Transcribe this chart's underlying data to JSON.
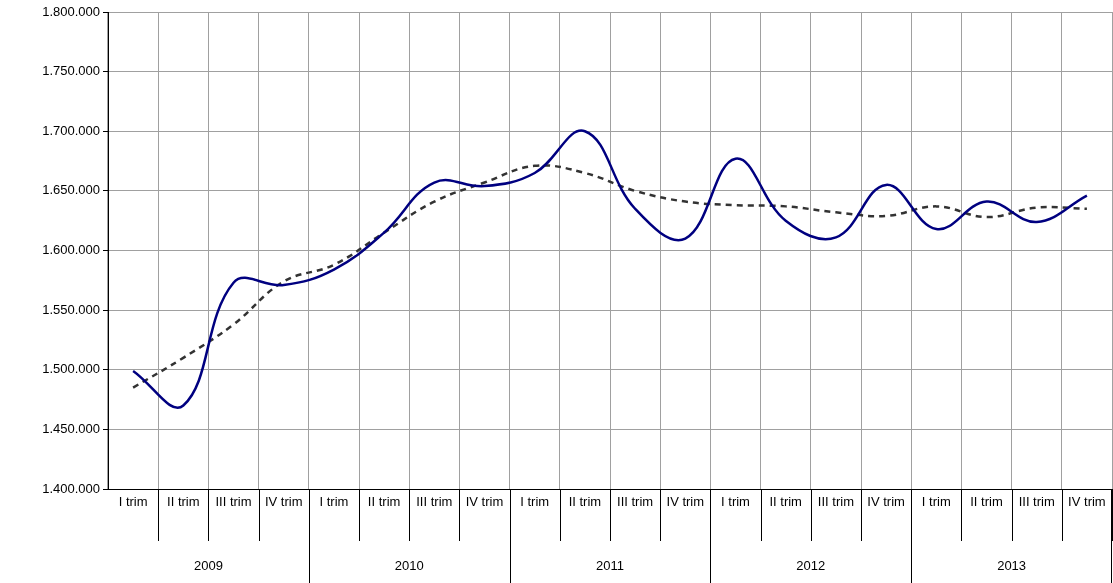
{
  "chart_data": {
    "type": "line",
    "categories": [
      "I trim",
      "II trim",
      "III trim",
      "IV trim",
      "I trim",
      "II trim",
      "III trim",
      "IV trim",
      "I trim",
      "II trim",
      "III trim",
      "IV trim",
      "I trim",
      "II trim",
      "III trim",
      "IV trim",
      "I trim",
      "II trim",
      "III trim",
      "IV trim"
    ],
    "series": [
      {
        "color": "#000080",
        "line_style": "solid",
        "values": [
          1499000,
          1470000,
          1573000,
          1571000,
          1584000,
          1615000,
          1657000,
          1654000,
          1665000,
          1700000,
          1635000,
          1610000,
          1677000,
          1625000,
          1611000,
          1655000,
          1618000,
          1641000,
          1624000,
          1646000
        ]
      },
      {
        "color": "#333333",
        "line_style": "dashed",
        "values": [
          1485000,
          1510000,
          1538000,
          1574000,
          1588000,
          1615000,
          1641000,
          1657000,
          1671000,
          1665000,
          1650000,
          1641000,
          1638000,
          1637000,
          1632000,
          1629000,
          1637000,
          1628000,
          1636000,
          1635000
        ]
      }
    ],
    "ylim": [
      1400000,
      1800000
    ],
    "yticks": [
      {
        "value": 1400000,
        "label": "1.400.000"
      },
      {
        "value": 1450000,
        "label": "1.450.000"
      },
      {
        "value": 1500000,
        "label": "1.500.000"
      },
      {
        "value": 1550000,
        "label": "1.550.000"
      },
      {
        "value": 1600000,
        "label": "1.600.000"
      },
      {
        "value": 1650000,
        "label": "1.650.000"
      },
      {
        "value": 1700000,
        "label": "1.700.000"
      },
      {
        "value": 1750000,
        "label": "1.750.000"
      },
      {
        "value": 1800000,
        "label": "1.800.000"
      }
    ],
    "grid": true,
    "legend": false,
    "marker": "none",
    "annotations": [
      "2009",
      "2010",
      "2011",
      "2012",
      "2013"
    ]
  }
}
